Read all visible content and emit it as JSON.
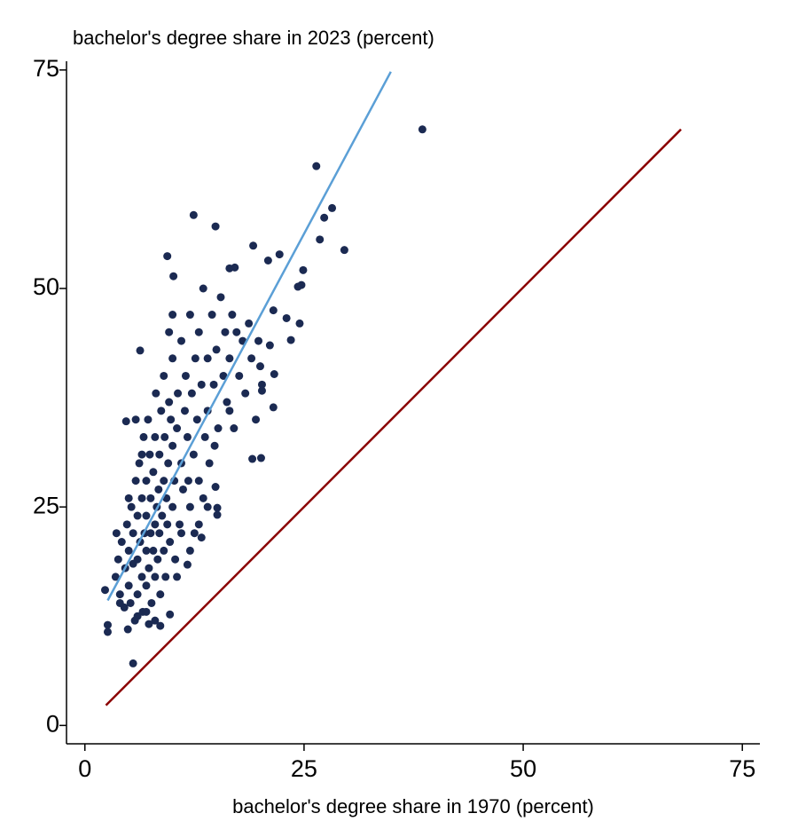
{
  "chart_data": {
    "type": "scatter",
    "y_axis_label": "bachelor's degree share in 2023 (percent)",
    "x_axis_label": "bachelor's degree share in 1970 (percent)",
    "xlim": [
      -2.1,
      77
    ],
    "ylim": [
      -2.1,
      76
    ],
    "xticks": [
      0,
      25,
      50,
      75
    ],
    "yticks": [
      0,
      25,
      50,
      75
    ],
    "series": [
      {
        "mark": "scatter",
        "color": "#1b2a52",
        "x": [
          38.5,
          26.4,
          28.2,
          27.3,
          12.4,
          14.9,
          29.6,
          26.8,
          9.4,
          19.2,
          22.2,
          20.9,
          24.9,
          24.7,
          24.3,
          10.1,
          16.5,
          17.1,
          21.5,
          24.5,
          23.0,
          23.5,
          21.1,
          5.5,
          2.6,
          2.6,
          2.3,
          9.7,
          6.3,
          19.1,
          20.1,
          21.5,
          20.2,
          21.6,
          20.0,
          15.1,
          15.1,
          14.9,
          13.3,
          11.7,
          8.6,
          7.3,
          4.9,
          3.5,
          3.8,
          4,
          4.2,
          4.5,
          4.6,
          4.8,
          5,
          5,
          5.2,
          5.3,
          5.5,
          5.5,
          5.7,
          5.8,
          6,
          6,
          6,
          6.2,
          6.3,
          6.5,
          6.5,
          6.6,
          6.7,
          6.8,
          7,
          7,
          7,
          7,
          7.2,
          7.3,
          7.4,
          7.5,
          7.5,
          7.6,
          7.8,
          7.8,
          8,
          8,
          8,
          8.1,
          8.2,
          8.3,
          8.4,
          8.5,
          8.5,
          8.6,
          8.7,
          8.8,
          9,
          9,
          9,
          9.1,
          9.2,
          9.3,
          9.4,
          9.5,
          9.6,
          9.7,
          9.8,
          10,
          10,
          10,
          10.2,
          10.3,
          10.5,
          10.6,
          10.8,
          11,
          11,
          11.2,
          11.4,
          11.5,
          11.7,
          12,
          12,
          12.2,
          12.4,
          12.6,
          12.8,
          13,
          13,
          13.3,
          13.5,
          13.7,
          14,
          14,
          14.2,
          14.5,
          14.7,
          15,
          15.2,
          15.5,
          15.8,
          16,
          16.2,
          16.5,
          16.8,
          17,
          17.3,
          17.6,
          18,
          18.3,
          18.7,
          19,
          19.5,
          19.8,
          20.2,
          12,
          11,
          10.5,
          13.5,
          14.8,
          16.5,
          8,
          7,
          6,
          4,
          3.6,
          5,
          6.5,
          5.8,
          4.7,
          10,
          9.6,
          12.5,
          11.8,
          14,
          13
        ],
        "values": [
          68.2,
          64.0,
          59.2,
          58.1,
          58.4,
          57.1,
          54.4,
          55.6,
          53.7,
          54.9,
          53.9,
          53.2,
          52.1,
          50.4,
          50.2,
          51.4,
          52.3,
          52.4,
          47.5,
          46.0,
          46.6,
          44.1,
          43.5,
          7.1,
          11.5,
          10.7,
          15.5,
          12.7,
          42.9,
          30.5,
          30.6,
          36.4,
          38.3,
          40.2,
          41.1,
          24.1,
          24.9,
          27.3,
          21.5,
          18.4,
          11.4,
          11.6,
          11.0,
          17,
          19,
          15,
          21,
          13.5,
          18,
          23,
          16,
          20,
          14,
          25,
          18.5,
          22,
          12,
          28,
          15,
          19,
          24,
          30,
          21,
          17,
          26,
          13,
          33,
          22,
          16,
          20,
          24,
          28,
          35,
          18,
          31,
          22,
          26,
          14,
          20,
          29,
          17,
          23,
          33,
          38,
          25,
          19,
          27,
          22,
          31,
          15,
          36,
          24,
          20,
          28,
          40,
          33,
          17,
          26,
          23,
          30,
          37,
          21,
          35,
          25,
          32,
          42,
          28,
          19,
          34,
          38,
          23,
          30,
          44,
          27,
          36,
          40,
          33,
          25,
          47,
          38,
          31,
          42,
          35,
          28,
          45,
          39,
          50,
          33,
          42,
          36,
          30,
          47,
          39,
          43,
          34,
          49,
          40,
          45,
          37,
          42,
          47,
          34,
          45,
          40,
          44,
          38,
          46,
          42,
          35,
          44,
          39,
          20,
          22,
          17,
          26,
          32,
          36,
          12,
          13,
          12.5,
          14,
          22,
          26,
          31,
          35,
          34.8,
          47,
          45,
          22,
          28,
          25,
          23
        ]
      },
      {
        "mark": "line",
        "color": "#5b9fd6",
        "x": [
          2.6,
          34.9
        ],
        "values": [
          14.3,
          74.8
        ]
      },
      {
        "mark": "line",
        "color": "#8b0000",
        "x": [
          2.4,
          68
        ],
        "values": [
          2.3,
          68.2
        ]
      }
    ]
  }
}
